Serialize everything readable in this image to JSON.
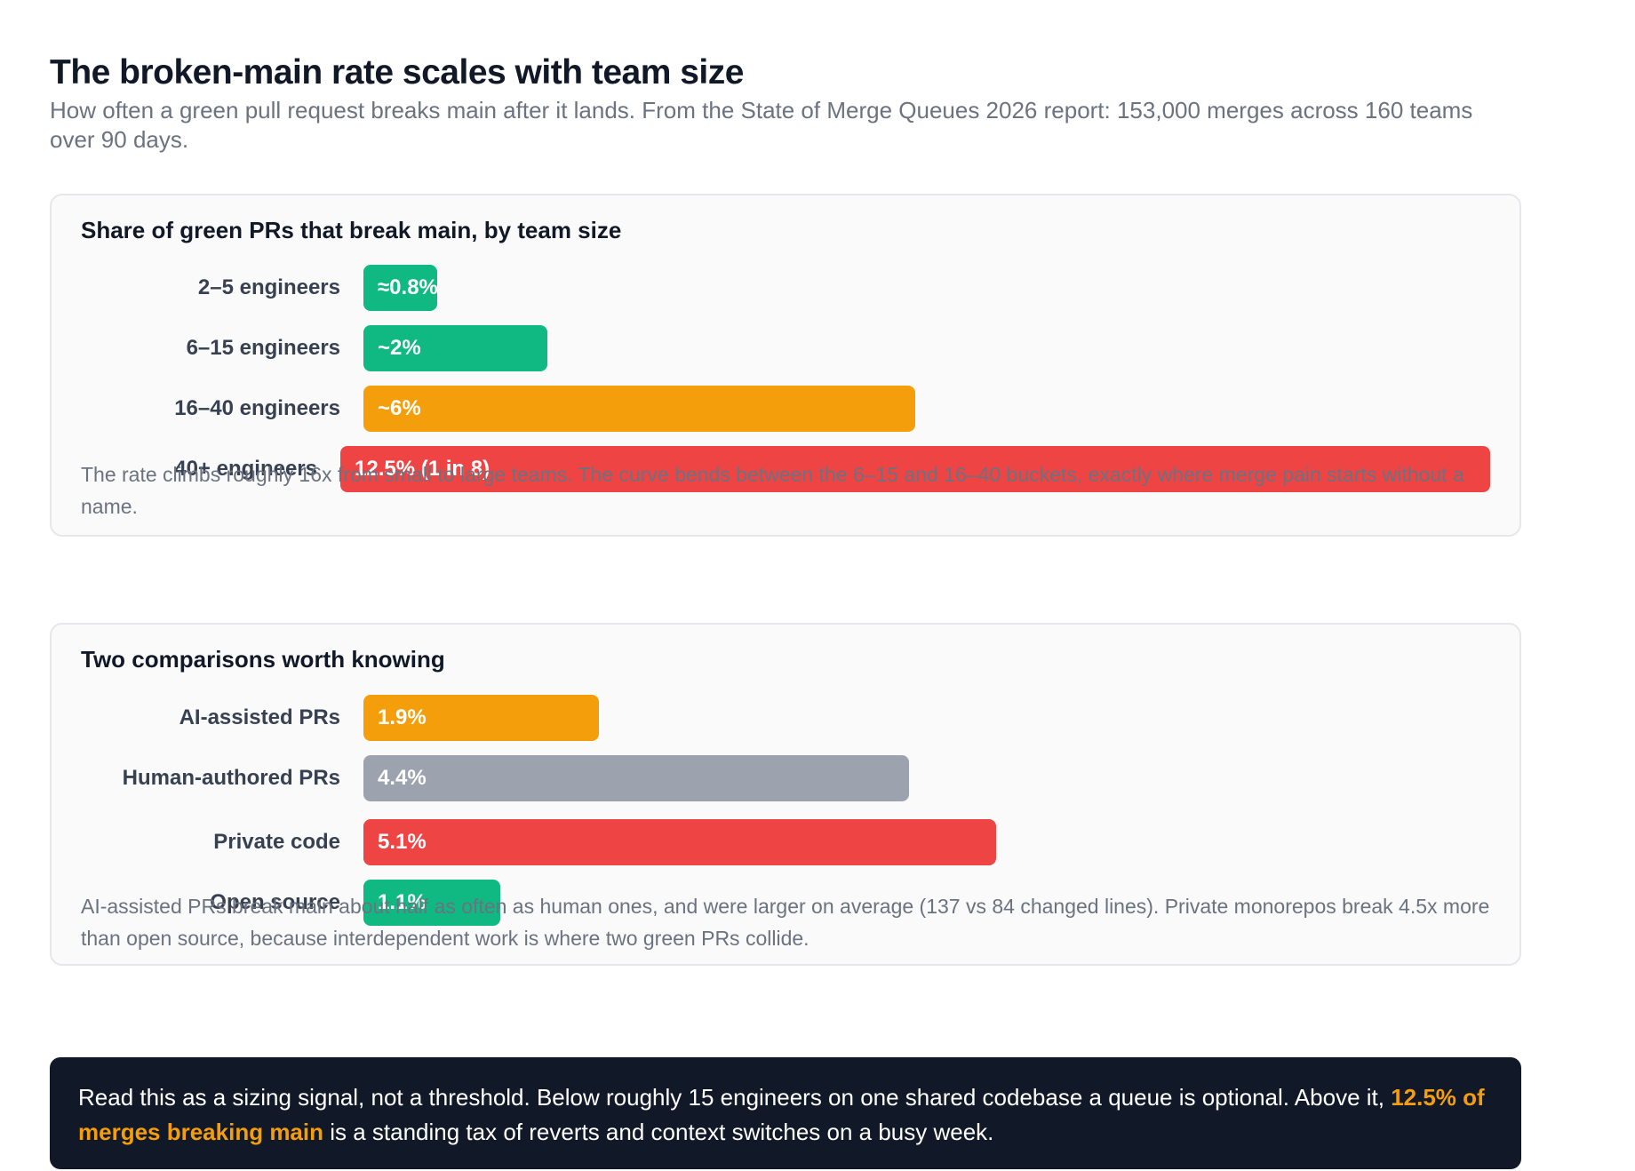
{
  "header": {
    "title": "The broken-main rate scales with team size",
    "subtitle": "How often a green pull request breaks main after it lands. From the State of Merge Queues 2026 report: 153,000 merges across 160 teams over 90 days."
  },
  "colors": {
    "green": "#10b981",
    "amber": "#f59e0b",
    "red": "#ef4444",
    "gray": "#9ca3af",
    "dark": "#111827"
  },
  "chart_data": [
    {
      "type": "bar",
      "orientation": "horizontal",
      "title": "Share of green PRs that break main, by team size",
      "categories": [
        "2–5 engineers",
        "6–15 engineers",
        "16–40 engineers",
        "40+ engineers"
      ],
      "values": [
        0.8,
        2,
        6,
        12.5
      ],
      "data_labels": [
        "≈0.8%",
        "~2%",
        "~6%",
        "12.5% (1 in 8)"
      ],
      "bar_colors": [
        "green",
        "green",
        "amber",
        "red"
      ],
      "note": "The rate climbs roughly 16x from small to large teams. The curve bends between the 6–15 and 16–40 buckets, exactly where merge pain starts without a name."
    },
    {
      "type": "bar",
      "orientation": "horizontal",
      "title": "Two comparisons worth knowing",
      "categories": [
        "AI-assisted PRs",
        "Human-authored PRs",
        "Private code",
        "Open source"
      ],
      "values": [
        1.9,
        4.4,
        5.1,
        1.1
      ],
      "data_labels": [
        "1.9%",
        "4.4%",
        "5.1%",
        "1.1%"
      ],
      "bar_colors": [
        "amber",
        "gray",
        "red",
        "green"
      ],
      "note": "AI-assisted PRs break main about half as often as human ones, and were larger on average (137 vs 84 changed lines). Private monorepos break 4.5x more than open source, because interdependent work is where two green PRs collide."
    }
  ],
  "callout": {
    "text_before": "Read this as a sizing signal, not a threshold. Below roughly 15 engineers on one shared codebase a queue is optional. Above it, ",
    "highlight": "12.5% of merges breaking main",
    "text_after": " is a standing tax of reverts and context switches on a busy week."
  }
}
